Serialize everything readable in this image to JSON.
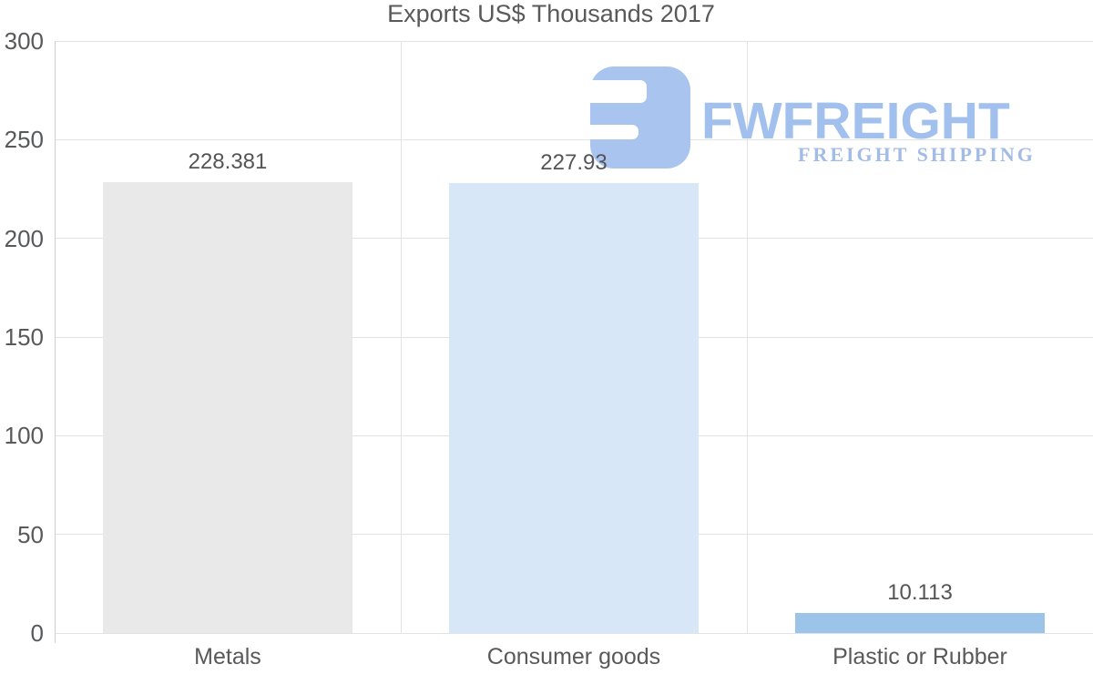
{
  "title": "Exports US$ Thousands 2017",
  "chart_data": {
    "type": "bar",
    "title": "Exports US$ Thousands 2017",
    "categories": [
      "Metals",
      "Consumer goods",
      "Plastic or Rubber"
    ],
    "values": [
      228.381,
      227.93,
      10.113
    ],
    "value_labels": [
      "228.381",
      "227.93",
      "10.113"
    ],
    "bar_colors": [
      "#e9e9e9",
      "#d8e7f7",
      "#9cc4e9"
    ],
    "y_ticks": [
      0,
      50,
      100,
      150,
      200,
      250,
      300
    ],
    "ylim": [
      0,
      300
    ],
    "grid": true,
    "legend": "none",
    "xlabel": "",
    "ylabel": ""
  },
  "watermark": {
    "brand": "FWFREIGHT",
    "tagline": "FREIGHT SHIPPING",
    "mark_color": "#a9c4ef",
    "brand_color": "#a2c0ee",
    "tagline_color": "#a3bce6"
  },
  "colors": {
    "text": "#58595b",
    "grid": "#e3e3e3",
    "axis": "#cfcfcf",
    "background": "#ffffff"
  }
}
